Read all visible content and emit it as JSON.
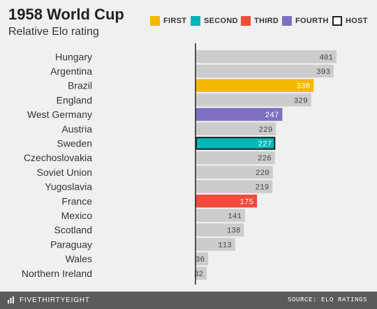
{
  "header": {
    "title": "1958 World Cup",
    "subtitle": "Relative Elo rating"
  },
  "legend": [
    {
      "label": "FIRST",
      "color": "#f5b800",
      "kind": "fill"
    },
    {
      "label": "SECOND",
      "color": "#00b5b8",
      "kind": "fill"
    },
    {
      "label": "THIRD",
      "color": "#f24a3d",
      "kind": "fill"
    },
    {
      "label": "FOURTH",
      "color": "#7e6fc2",
      "kind": "fill"
    },
    {
      "label": "HOST",
      "color": "#222222",
      "kind": "outline"
    }
  ],
  "footer": {
    "brand": "FIVETHIRTYEIGHT",
    "brand_icon": "fivethirtyeight-logo-icon",
    "source": "SOURCE: ELO RATINGS"
  },
  "chart_data": {
    "type": "bar",
    "orientation": "horizontal",
    "title": "1958 World Cup",
    "subtitle": "Relative Elo rating",
    "xlabel": "",
    "ylabel": "",
    "xlim": [
      0,
      410
    ],
    "grid": false,
    "legend_position": "top-right",
    "default_color": "#cccccc",
    "categories": [
      "Hungary",
      "Argentina",
      "Brazil",
      "England",
      "West Germany",
      "Austria",
      "Sweden",
      "Czechoslovakia",
      "Soviet Union",
      "Yugoslavia",
      "France",
      "Mexico",
      "Scotland",
      "Paraguay",
      "Wales",
      "Northern Ireland"
    ],
    "values": [
      401,
      393,
      336,
      329,
      247,
      229,
      227,
      226,
      220,
      219,
      175,
      141,
      138,
      113,
      36,
      32
    ],
    "finish": [
      "",
      "",
      "FIRST",
      "",
      "FOURTH",
      "",
      "SECOND",
      "",
      "",
      "",
      "THIRD",
      "",
      "",
      "",
      "",
      ""
    ],
    "host": [
      "",
      "",
      "",
      "",
      "",
      "",
      "HOST",
      "",
      "",
      "",
      "",
      "",
      "",
      "",
      "",
      ""
    ]
  }
}
